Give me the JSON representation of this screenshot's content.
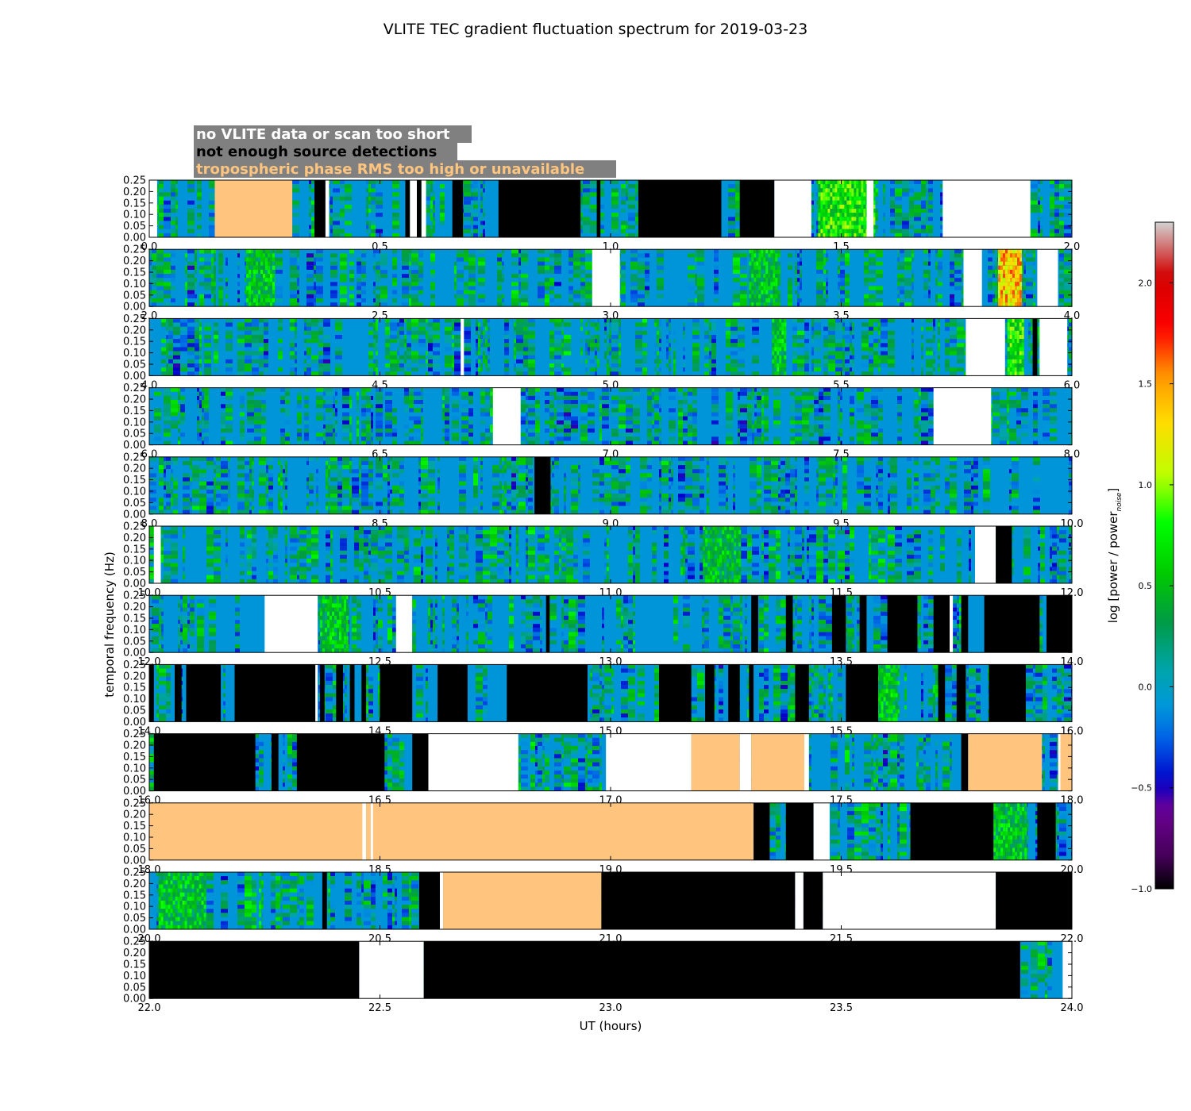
{
  "chart_data": {
    "type": "heatmap",
    "title": "VLITE TEC gradient fluctuation spectrum for 2019-03-23",
    "xlabel": "UT (hours)",
    "ylabel": "temporal frequency (Hz)",
    "ylim": [
      0.0,
      0.25
    ],
    "y_ticks": [
      "0.00",
      "0.05",
      "0.10",
      "0.15",
      "0.20",
      "0.25"
    ],
    "colorbar": {
      "label": "log [power / power",
      "label_sub": "noise",
      "label_close": "]",
      "range": [
        -1.0,
        2.3
      ],
      "ticks": [
        "−1.0",
        "−0.5",
        "0.0",
        "0.5",
        "1.0",
        "1.5",
        "2.0"
      ],
      "tick_values": [
        -1.0,
        -0.5,
        0.0,
        0.5,
        1.0,
        1.5,
        2.0
      ],
      "colormap": "nipy_spectral"
    },
    "legend": [
      {
        "text": "no VLITE data or scan too short",
        "color": "#ffffff",
        "fill": "#ffffff"
      },
      {
        "text": "not enough source detections",
        "color": "#000000",
        "fill": "#000000"
      },
      {
        "text": "tropospheric phase RMS too high or unavailable",
        "color": "#ffc57f",
        "fill": "#ffc57f"
      }
    ],
    "legend_background": "#808080",
    "base_color": "#0095d8",
    "rows": [
      {
        "x_ticks": [
          "0.0",
          "0.5",
          "1.0",
          "1.5",
          "2.0"
        ],
        "xlim": [
          0.0,
          2.0
        ],
        "masks": [
          [
            0.0,
            0.017,
            "nodata"
          ],
          [
            0.142,
            0.31,
            "tropo"
          ],
          [
            0.358,
            0.382,
            "few"
          ],
          [
            0.382,
            0.39,
            "nodata"
          ],
          [
            0.555,
            0.565,
            "few"
          ],
          [
            0.565,
            0.58,
            "nodata"
          ],
          [
            0.58,
            0.59,
            "few"
          ],
          [
            0.59,
            0.6,
            "nodata"
          ],
          [
            0.657,
            0.68,
            "few"
          ],
          [
            0.757,
            0.935,
            "few"
          ],
          [
            0.97,
            0.978,
            "few"
          ],
          [
            1.06,
            1.24,
            "few"
          ],
          [
            1.28,
            1.355,
            "few"
          ],
          [
            1.355,
            1.435,
            "nodata"
          ],
          [
            1.555,
            1.57,
            "nodata"
          ],
          [
            1.72,
            1.91,
            "nodata"
          ]
        ],
        "hot": [
          [
            1.45,
            1.57,
            0.7
          ]
        ]
      },
      {
        "x_ticks": [
          "2.0",
          "2.5",
          "3.0",
          "3.5",
          "4.0"
        ],
        "xlim": [
          2.0,
          4.0
        ],
        "masks": [
          [
            2.96,
            3.02,
            "nodata"
          ],
          [
            3.765,
            3.805,
            "nodata"
          ],
          [
            3.925,
            3.97,
            "nodata"
          ]
        ],
        "hot": [
          [
            3.84,
            3.89,
            1.35
          ],
          [
            2.21,
            2.27,
            0.5
          ],
          [
            3.3,
            3.36,
            0.5
          ]
        ]
      },
      {
        "x_ticks": [
          "4.0",
          "4.5",
          "5.0",
          "5.5",
          "6.0"
        ],
        "xlim": [
          4.0,
          6.0
        ],
        "masks": [
          [
            4.675,
            4.682,
            "nodata"
          ],
          [
            5.77,
            5.855,
            "nodata"
          ],
          [
            5.915,
            5.925,
            "few"
          ],
          [
            5.93,
            5.99,
            "nodata"
          ]
        ],
        "hot": [
          [
            5.86,
            5.895,
            0.7
          ],
          [
            5.35,
            5.38,
            0.5
          ]
        ]
      },
      {
        "x_ticks": [
          "6.0",
          "6.5",
          "7.0",
          "7.5",
          "8.0"
        ],
        "xlim": [
          6.0,
          8.0
        ],
        "masks": [
          [
            6.745,
            6.805,
            "nodata"
          ],
          [
            7.7,
            7.825,
            "nodata"
          ]
        ],
        "hot": []
      },
      {
        "x_ticks": [
          "8.0",
          "8.5",
          "9.0",
          "9.5",
          "10.0"
        ],
        "xlim": [
          8.0,
          10.0
        ],
        "masks": [
          [
            8.835,
            8.87,
            "few"
          ]
        ],
        "hot": []
      },
      {
        "x_ticks": [
          "10.0",
          "10.5",
          "11.0",
          "11.5",
          "12.0"
        ],
        "xlim": [
          10.0,
          12.0
        ],
        "masks": [
          [
            10.01,
            10.025,
            "nodata"
          ],
          [
            11.79,
            11.835,
            "nodata"
          ],
          [
            11.835,
            11.87,
            "few"
          ]
        ],
        "hot": [
          [
            11.2,
            11.28,
            0.45
          ]
        ]
      },
      {
        "x_ticks": [
          "12.0",
          "12.5",
          "13.0",
          "13.5",
          "14.0"
        ],
        "xlim": [
          12.0,
          14.0
        ],
        "masks": [
          [
            12.25,
            12.365,
            "nodata"
          ],
          [
            12.535,
            12.57,
            "nodata"
          ],
          [
            12.86,
            12.868,
            "few"
          ],
          [
            13.305,
            13.32,
            "few"
          ],
          [
            13.38,
            13.395,
            "few"
          ],
          [
            13.48,
            13.51,
            "few"
          ],
          [
            13.54,
            13.555,
            "few"
          ],
          [
            13.6,
            13.665,
            "few"
          ],
          [
            13.7,
            13.735,
            "few"
          ],
          [
            13.735,
            13.742,
            "nodata"
          ],
          [
            13.76,
            13.775,
            "few"
          ],
          [
            13.81,
            13.93,
            "few"
          ],
          [
            13.945,
            14.0,
            "few"
          ]
        ],
        "hot": [
          [
            12.37,
            12.43,
            0.5
          ]
        ]
      },
      {
        "x_ticks": [
          "14.0",
          "14.5",
          "15.0",
          "15.5",
          "16.0"
        ],
        "xlim": [
          14.0,
          16.0
        ],
        "masks": [
          [
            14.0,
            14.01,
            "few"
          ],
          [
            14.055,
            14.07,
            "few"
          ],
          [
            14.08,
            14.155,
            "few"
          ],
          [
            14.185,
            14.195,
            "few"
          ],
          [
            14.19,
            14.28,
            "few"
          ],
          [
            14.275,
            14.36,
            "few"
          ],
          [
            14.36,
            14.365,
            "nodata"
          ],
          [
            14.37,
            14.38,
            "few"
          ],
          [
            14.405,
            14.42,
            "few"
          ],
          [
            14.435,
            14.445,
            "few"
          ],
          [
            14.46,
            14.47,
            "few"
          ],
          [
            14.5,
            14.57,
            "few"
          ],
          [
            14.625,
            14.69,
            "few"
          ],
          [
            14.775,
            14.95,
            "few"
          ],
          [
            15.105,
            15.175,
            "few"
          ],
          [
            15.205,
            15.225,
            "few"
          ],
          [
            15.255,
            15.28,
            "few"
          ],
          [
            15.3,
            15.31,
            "few"
          ],
          [
            15.4,
            15.43,
            "few"
          ],
          [
            15.51,
            15.58,
            "few"
          ],
          [
            15.71,
            15.725,
            "few"
          ],
          [
            15.75,
            15.77,
            "few"
          ],
          [
            15.82,
            15.9,
            "few"
          ]
        ],
        "hot": [
          [
            15.55,
            15.62,
            0.5
          ]
        ]
      },
      {
        "x_ticks": [
          "16.0",
          "16.5",
          "17.0",
          "17.5",
          "18.0"
        ],
        "xlim": [
          16.0,
          18.0
        ],
        "masks": [
          [
            16.01,
            16.23,
            "few"
          ],
          [
            16.265,
            16.28,
            "few"
          ],
          [
            16.32,
            16.51,
            "few"
          ],
          [
            16.57,
            16.605,
            "few"
          ],
          [
            16.605,
            16.8,
            "nodata"
          ],
          [
            16.99,
            17.175,
            "nodata"
          ],
          [
            17.175,
            17.28,
            "tropo"
          ],
          [
            17.28,
            17.305,
            "nodata"
          ],
          [
            17.305,
            17.42,
            "tropo"
          ],
          [
            17.42,
            17.43,
            "nodata"
          ],
          [
            17.76,
            17.775,
            "few"
          ],
          [
            17.775,
            17.935,
            "tropo"
          ],
          [
            17.97,
            17.975,
            "nodata"
          ],
          [
            17.975,
            18.0,
            "tropo"
          ]
        ],
        "hot": []
      },
      {
        "x_ticks": [
          "18.0",
          "18.5",
          "19.0",
          "19.5",
          "20.0"
        ],
        "xlim": [
          18.0,
          20.0
        ],
        "masks": [
          [
            18.0,
            19.31,
            "tropo"
          ],
          [
            18.462,
            18.47,
            "nodata"
          ],
          [
            18.48,
            18.485,
            "nodata"
          ],
          [
            19.31,
            19.345,
            "few"
          ],
          [
            19.38,
            19.44,
            "few"
          ],
          [
            19.44,
            19.475,
            "nodata"
          ],
          [
            19.65,
            19.83,
            "few"
          ],
          [
            19.925,
            19.965,
            "few"
          ]
        ],
        "hot": [
          [
            19.83,
            19.9,
            0.5
          ]
        ]
      },
      {
        "x_ticks": [
          "20.0",
          "20.5",
          "21.0",
          "21.5",
          "22.0"
        ],
        "xlim": [
          20.0,
          22.0
        ],
        "masks": [
          [
            20.375,
            20.385,
            "few"
          ],
          [
            20.585,
            20.63,
            "few"
          ],
          [
            20.63,
            20.637,
            "nodata"
          ],
          [
            20.637,
            20.98,
            "tropo"
          ],
          [
            20.98,
            21.4,
            "few"
          ],
          [
            21.4,
            21.418,
            "nodata"
          ],
          [
            21.418,
            21.46,
            "few"
          ],
          [
            21.46,
            21.835,
            "nodata"
          ],
          [
            21.835,
            22.0,
            "few"
          ]
        ],
        "hot": [
          [
            20.02,
            20.12,
            0.5
          ]
        ]
      },
      {
        "x_ticks": [
          "22.0",
          "22.5",
          "23.0",
          "23.5",
          "24.0"
        ],
        "xlim": [
          22.0,
          24.0
        ],
        "masks": [
          [
            22.0,
            22.455,
            "few"
          ],
          [
            22.455,
            22.595,
            "nodata"
          ],
          [
            22.595,
            23.888,
            "few"
          ],
          [
            23.98,
            24.0,
            "nodata"
          ]
        ],
        "hot": []
      }
    ]
  }
}
